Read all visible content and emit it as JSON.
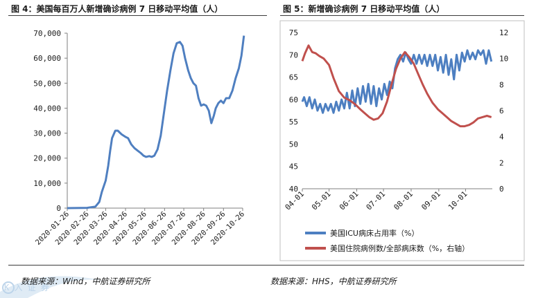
{
  "figures": [
    {
      "title": "图 4：美国每百万人新增确诊病例 7 日移动平均值（人）",
      "source": "数据来源：Wind，中航证券研究所"
    },
    {
      "title": "图 5：新增确诊病例 7 日移动平均值（人）",
      "source": "数据来源：HHS，中航证券研究所"
    }
  ],
  "watermark_text": "K 入 证 券",
  "chart_data": [
    {
      "type": "line",
      "title": "",
      "xlabel": "",
      "ylabel": "",
      "ylim": [
        0,
        70000
      ],
      "y_ticks": [
        0,
        10000,
        20000,
        30000,
        40000,
        50000,
        60000,
        70000
      ],
      "y_tick_labels": [
        "0",
        "10,000",
        "20,000",
        "30,000",
        "40,000",
        "50,000",
        "60,000",
        "70,000"
      ],
      "x_ticks": [
        "2020-01-26",
        "2020-02-26",
        "2020-03-26",
        "2020-04-26",
        "2020-05-26",
        "2020-06-26",
        "2020-07-26",
        "2020-08-26",
        "2020-09-26",
        "2020-10-26"
      ],
      "grid": false,
      "color": "#4f7fc0",
      "series": [
        {
          "name": "",
          "x": [
            "2020-01-26",
            "2020-02-26",
            "2020-03-10",
            "2020-03-16",
            "2020-03-20",
            "2020-03-26",
            "2020-03-30",
            "2020-04-02",
            "2020-04-05",
            "2020-04-10",
            "2020-04-14",
            "2020-04-20",
            "2020-04-26",
            "2020-04-30",
            "2020-05-05",
            "2020-05-10",
            "2020-05-15",
            "2020-05-20",
            "2020-05-24",
            "2020-05-28",
            "2020-06-02",
            "2020-06-06",
            "2020-06-10",
            "2020-06-15",
            "2020-06-20",
            "2020-06-26",
            "2020-06-30",
            "2020-07-05",
            "2020-07-10",
            "2020-07-15",
            "2020-07-20",
            "2020-07-24",
            "2020-07-28",
            "2020-08-02",
            "2020-08-06",
            "2020-08-10",
            "2020-08-14",
            "2020-08-18",
            "2020-08-22",
            "2020-08-26",
            "2020-08-30",
            "2020-09-03",
            "2020-09-07",
            "2020-09-11",
            "2020-09-14",
            "2020-09-18",
            "2020-09-22",
            "2020-09-26",
            "2020-09-30",
            "2020-10-05",
            "2020-10-10",
            "2020-10-15",
            "2020-10-20",
            "2020-10-24",
            "2020-10-28"
          ],
          "y": [
            0,
            100,
            600,
            2500,
            6500,
            11000,
            17000,
            23000,
            28000,
            31000,
            31000,
            29500,
            28500,
            28000,
            25500,
            24000,
            23000,
            22000,
            21000,
            20500,
            20800,
            20500,
            21000,
            23500,
            29000,
            40000,
            47000,
            55000,
            62000,
            66000,
            66500,
            65000,
            60000,
            55000,
            52000,
            50000,
            49000,
            44000,
            41000,
            41500,
            41000,
            39000,
            34000,
            37000,
            40000,
            42000,
            43000,
            42000,
            44000,
            44000,
            47000,
            52000,
            56000,
            61000,
            69000
          ]
        }
      ]
    },
    {
      "type": "line",
      "title": "",
      "x_ticks": [
        "04-01",
        "05-01",
        "06-01",
        "07-01",
        "08-01",
        "09-01",
        "10-01"
      ],
      "y_left": {
        "ylim": [
          40,
          75
        ],
        "ticks": [
          40,
          45,
          50,
          55,
          60,
          65,
          70,
          75
        ]
      },
      "y_right": {
        "ylim": [
          0,
          12
        ],
        "ticks": [
          0,
          2,
          4,
          6,
          8,
          10,
          12
        ]
      },
      "grid": false,
      "legend_position": "bottom",
      "series": [
        {
          "name": "美国ICU病床占用率（%）",
          "axis": "left",
          "color": "#4d7fc1",
          "x": [
            "04-01",
            "04-03",
            "04-06",
            "04-09",
            "04-12",
            "04-15",
            "04-18",
            "04-21",
            "04-24",
            "04-27",
            "04-30",
            "05-03",
            "05-06",
            "05-09",
            "05-12",
            "05-15",
            "05-18",
            "05-21",
            "05-24",
            "05-27",
            "05-30",
            "06-02",
            "06-05",
            "06-08",
            "06-11",
            "06-14",
            "06-17",
            "06-20",
            "06-23",
            "06-26",
            "06-29",
            "07-02",
            "07-05",
            "07-08",
            "07-11",
            "07-14",
            "07-17",
            "07-20",
            "07-23",
            "07-26",
            "07-29",
            "08-01",
            "08-04",
            "08-07",
            "08-10",
            "08-13",
            "08-16",
            "08-19",
            "08-22",
            "08-25",
            "08-28",
            "08-31",
            "09-03",
            "09-06",
            "09-09",
            "09-12",
            "09-15",
            "09-18",
            "09-21",
            "09-24",
            "09-27",
            "09-30",
            "10-03",
            "10-06",
            "10-09",
            "10-12",
            "10-15",
            "10-18",
            "10-21",
            "10-24",
            "10-27",
            "10-30"
          ],
          "y": [
            59.5,
            60.5,
            58.5,
            60.5,
            58.0,
            60.0,
            57.5,
            59.0,
            57.0,
            59.0,
            57.5,
            59.0,
            57.0,
            59.5,
            57.5,
            60.0,
            58.0,
            61.5,
            58.0,
            62.0,
            58.5,
            62.5,
            59.0,
            63.0,
            59.5,
            63.5,
            59.0,
            63.0,
            58.5,
            62.5,
            60.0,
            63.5,
            61.0,
            64.0,
            62.5,
            67.0,
            69.0,
            70.0,
            68.5,
            70.5,
            69.0,
            68.0,
            70.0,
            68.0,
            70.0,
            68.0,
            70.0,
            67.5,
            70.0,
            67.5,
            70.0,
            66.5,
            69.5,
            66.0,
            70.0,
            65.5,
            69.0,
            64.5,
            70.0,
            66.5,
            70.5,
            68.5,
            71.0,
            69.0,
            70.5,
            69.0,
            71.0,
            70.0,
            71.0,
            68.0,
            71.0,
            68.5
          ]
        },
        {
          "name": "美国住院病例数/全部病床数（%，右轴）",
          "axis": "right",
          "color": "#c0504d",
          "x": [
            "04-01",
            "04-04",
            "04-08",
            "04-12",
            "04-16",
            "04-20",
            "04-25",
            "05-01",
            "05-06",
            "05-12",
            "05-18",
            "05-24",
            "05-30",
            "06-05",
            "06-10",
            "06-15",
            "06-20",
            "06-25",
            "06-30",
            "07-05",
            "07-10",
            "07-15",
            "07-20",
            "07-25",
            "07-30",
            "08-04",
            "08-09",
            "08-14",
            "08-19",
            "08-25",
            "08-31",
            "09-05",
            "09-10",
            "09-15",
            "09-20",
            "09-25",
            "09-30",
            "10-05",
            "10-10",
            "10-15",
            "10-20",
            "10-25",
            "10-30"
          ],
          "y": [
            9.8,
            10.4,
            11.0,
            10.5,
            10.4,
            10.2,
            10.0,
            9.5,
            8.5,
            7.5,
            7.0,
            6.8,
            6.5,
            6.1,
            5.8,
            5.5,
            5.3,
            5.4,
            5.8,
            6.7,
            8.0,
            9.2,
            10.0,
            10.5,
            10.1,
            9.6,
            8.8,
            8.0,
            7.3,
            6.6,
            6.1,
            5.8,
            5.5,
            5.2,
            5.0,
            4.8,
            4.8,
            4.9,
            5.1,
            5.4,
            5.5,
            5.6,
            5.5
          ]
        }
      ]
    }
  ]
}
